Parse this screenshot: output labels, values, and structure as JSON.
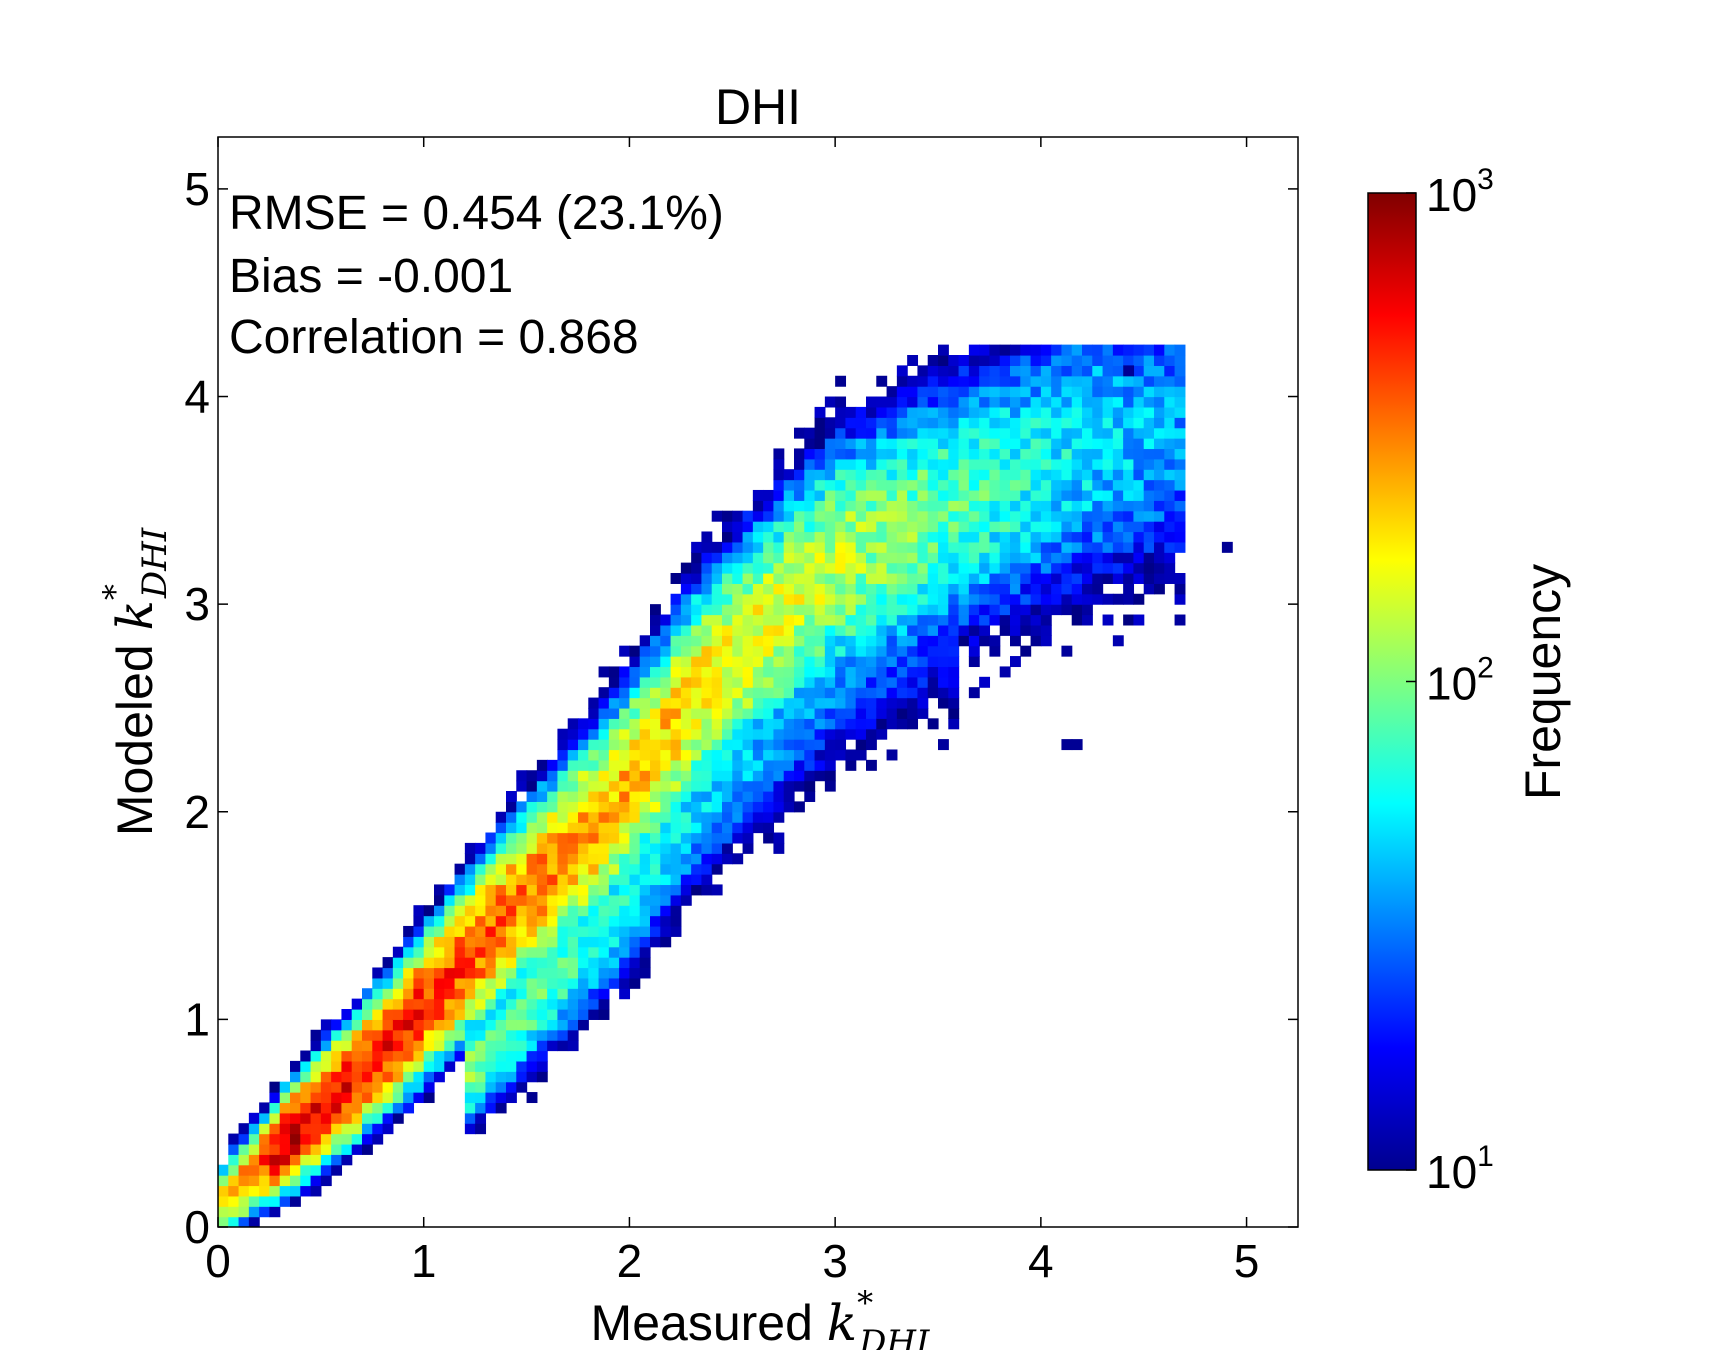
{
  "chart_data": {
    "type": "heatmap",
    "title": "DHI",
    "xlabel": {
      "text": "Measured ",
      "symbol": "k",
      "sup": "*",
      "sub": "DHI"
    },
    "ylabel": {
      "text": "Modeled ",
      "symbol": "k",
      "sup": "*",
      "sub": "DHI"
    },
    "xlim": [
      0,
      5.25
    ],
    "ylim": [
      0,
      5.25
    ],
    "xticks": [
      "0",
      "1",
      "2",
      "3",
      "4",
      "5"
    ],
    "yticks": [
      "0",
      "1",
      "2",
      "3",
      "4",
      "5"
    ],
    "annotations": [
      "RMSE = 0.454 (23.1%)",
      "Bias = -0.001",
      "Correlation = 0.868"
    ],
    "colorbar": {
      "label": "Frequency",
      "scale": "log",
      "colormap": "jet",
      "min": 10,
      "max": 1000,
      "ticks": [
        {
          "base": "10",
          "exp": "1"
        },
        {
          "base": "10",
          "exp": "2"
        },
        {
          "base": "10",
          "exp": "3"
        }
      ]
    },
    "bin_size": 0.05,
    "distribution": {
      "description_points": [
        {
          "x": 0.1,
          "y": 0.2
        },
        {
          "x": 0.75,
          "y": 0.8
        },
        {
          "x": 1.5,
          "y": 1.6
        },
        {
          "x": 1.9,
          "y": 2.0
        },
        {
          "x": 2.35,
          "y": 2.6
        },
        {
          "x": 3.0,
          "y": 3.2
        },
        {
          "x": 4.2,
          "y": 3.75
        },
        {
          "x": 4.6,
          "y": 3.85
        }
      ],
      "peak_frequency": 1000,
      "peak_location": {
        "x": 0.75,
        "y": 0.8
      }
    }
  }
}
